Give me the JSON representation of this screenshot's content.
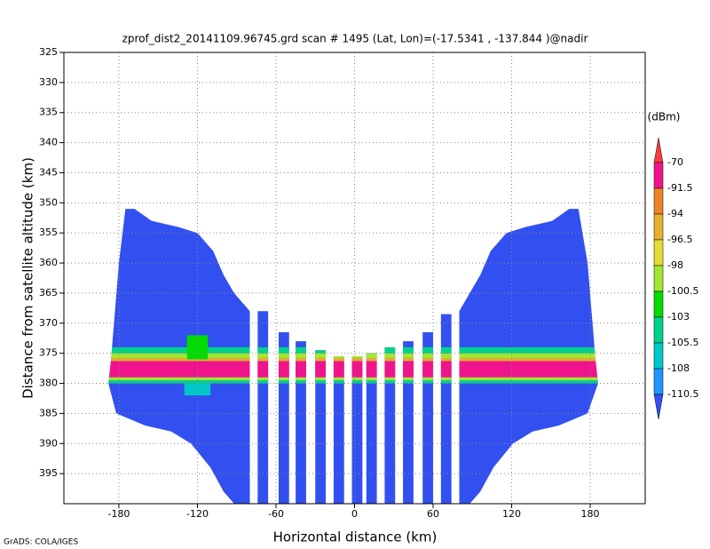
{
  "chart_data": {
    "type": "field",
    "title": "zprof_dist2_20141109.96745.grd  scan # 1495  (Lat, Lon)=(-17.5341 , -137.844 )@nadir",
    "x_label": "Horizontal distance (km)",
    "y_label": "Distance from satellite altitude (km)",
    "colorbar_label": "(dBm)",
    "footer": "GrADS: COLA/IGES",
    "xlim": [
      -222,
      222
    ],
    "ylim": [
      325,
      400
    ],
    "xticks": [
      -180,
      -120,
      -60,
      0,
      60,
      120,
      180
    ],
    "yticks": [
      325,
      330,
      335,
      340,
      345,
      350,
      355,
      360,
      365,
      370,
      375,
      380,
      385,
      390,
      395
    ],
    "y_inverted": true,
    "grid": true,
    "levels": [
      -70,
      -91.5,
      -94,
      -96.5,
      -98,
      -100.5,
      -103,
      -105.5,
      -108,
      -110.5
    ],
    "colors": [
      "#3250f0",
      "#1e96ff",
      "#00c8c8",
      "#00d28c",
      "#00dc00",
      "#a0e632",
      "#e6dc32",
      "#e6af2d",
      "#f08228",
      "#f0148c",
      "#fa3c3c"
    ],
    "swaths": [
      {
        "x": [
          -175,
          -168,
          -155,
          -135,
          -120,
          -108,
          -100,
          -92,
          -80,
          -80,
          -92,
          -100,
          -110,
          -125,
          -140,
          -160,
          -182,
          -188,
          -186,
          -180
        ],
        "y": [
          351,
          351,
          353,
          354,
          355,
          358,
          362,
          365,
          368,
          400,
          400,
          398,
          394,
          390,
          388,
          387,
          385,
          380,
          376,
          360
        ]
      },
      {
        "x": [
          -74,
          -66,
          -66,
          -74
        ],
        "y": [
          368,
          368,
          400,
          400
        ]
      },
      {
        "x": [
          -58,
          -50,
          -50,
          -58
        ],
        "y": [
          371.5,
          371.5,
          400,
          400
        ]
      },
      {
        "x": [
          -45,
          -37,
          -37,
          -45
        ],
        "y": [
          373,
          373,
          400,
          400
        ]
      },
      {
        "x": [
          -30,
          -22,
          -22,
          -30
        ],
        "y": [
          374.5,
          374.5,
          400,
          400
        ]
      },
      {
        "x": [
          -16,
          -8,
          -8,
          -16
        ],
        "y": [
          375.5,
          375.5,
          400,
          400
        ]
      },
      {
        "x": [
          -2,
          6,
          6,
          -2
        ],
        "y": [
          375.5,
          375.5,
          400,
          400
        ]
      },
      {
        "x": [
          9,
          17,
          17,
          9
        ],
        "y": [
          375,
          375,
          400,
          400
        ]
      },
      {
        "x": [
          23,
          31,
          31,
          23
        ],
        "y": [
          374,
          374,
          400,
          400
        ]
      },
      {
        "x": [
          37,
          45,
          45,
          37
        ],
        "y": [
          373,
          373,
          400,
          400
        ]
      },
      {
        "x": [
          52,
          60,
          60,
          52
        ],
        "y": [
          371.5,
          371.5,
          400,
          400
        ]
      },
      {
        "x": [
          66,
          74,
          74,
          66
        ],
        "y": [
          368.5,
          368.5,
          400,
          400
        ]
      },
      {
        "x": [
          171,
          164,
          151,
          131,
          116,
          104,
          96,
          88,
          80,
          80,
          88,
          96,
          106,
          121,
          136,
          156,
          178,
          186,
          184,
          178
        ],
        "y": [
          351,
          351,
          353,
          354,
          355,
          358,
          362,
          365,
          368,
          400,
          400,
          398,
          394,
          390,
          388,
          387,
          385,
          380,
          376,
          360
        ]
      }
    ],
    "patches": [
      {
        "x": [
          -222,
          222
        ],
        "y": [
          374,
          375
        ],
        "value": -103
      },
      {
        "x": [
          -222,
          222
        ],
        "y": [
          375,
          375.8
        ],
        "value": -98
      },
      {
        "x": [
          -222,
          222
        ],
        "y": [
          375.8,
          376.3
        ],
        "value": -94
      },
      {
        "x": [
          -222,
          222
        ],
        "y": [
          376.3,
          379
        ],
        "value": -80
      },
      {
        "x": [
          -222,
          222
        ],
        "y": [
          379,
          379.5
        ],
        "value": -98
      },
      {
        "x": [
          -222,
          222
        ],
        "y": [
          379.5,
          380
        ],
        "value": -105
      },
      {
        "x": [
          -128,
          -112
        ],
        "y": [
          372,
          376
        ],
        "value": -102
      },
      {
        "x": [
          -130,
          -110
        ],
        "y": [
          380,
          382
        ],
        "value": -107
      }
    ]
  }
}
